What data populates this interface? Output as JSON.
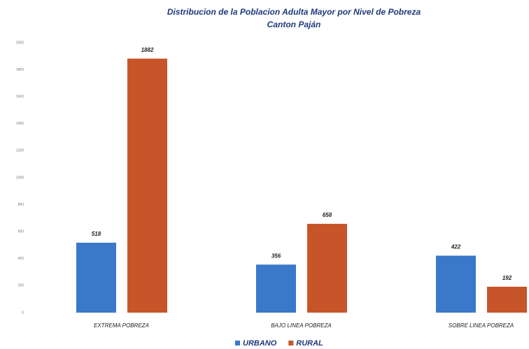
{
  "chart_data": {
    "type": "bar",
    "title": "Distribucion de la Poblacion Adulta Mayor por Nivel de Pobreza",
    "subtitle": "Canton Paján",
    "categories": [
      "EXTREMA POBREZA",
      "BAJO LINEA POBREZA",
      "SOBRE LINEA POBREZA"
    ],
    "series": [
      {
        "name": "URBANO",
        "color": "#3a78c9",
        "values": [
          518,
          356,
          422
        ]
      },
      {
        "name": "RURAL",
        "color": "#c8552a",
        "values": [
          1882,
          658,
          192
        ]
      }
    ],
    "ylim": [
      0,
      2000
    ],
    "yticks": [
      0,
      200,
      400,
      600,
      800,
      1000,
      1200,
      1400,
      1600,
      1800,
      2000
    ],
    "grid": false,
    "legend": "bottom"
  }
}
